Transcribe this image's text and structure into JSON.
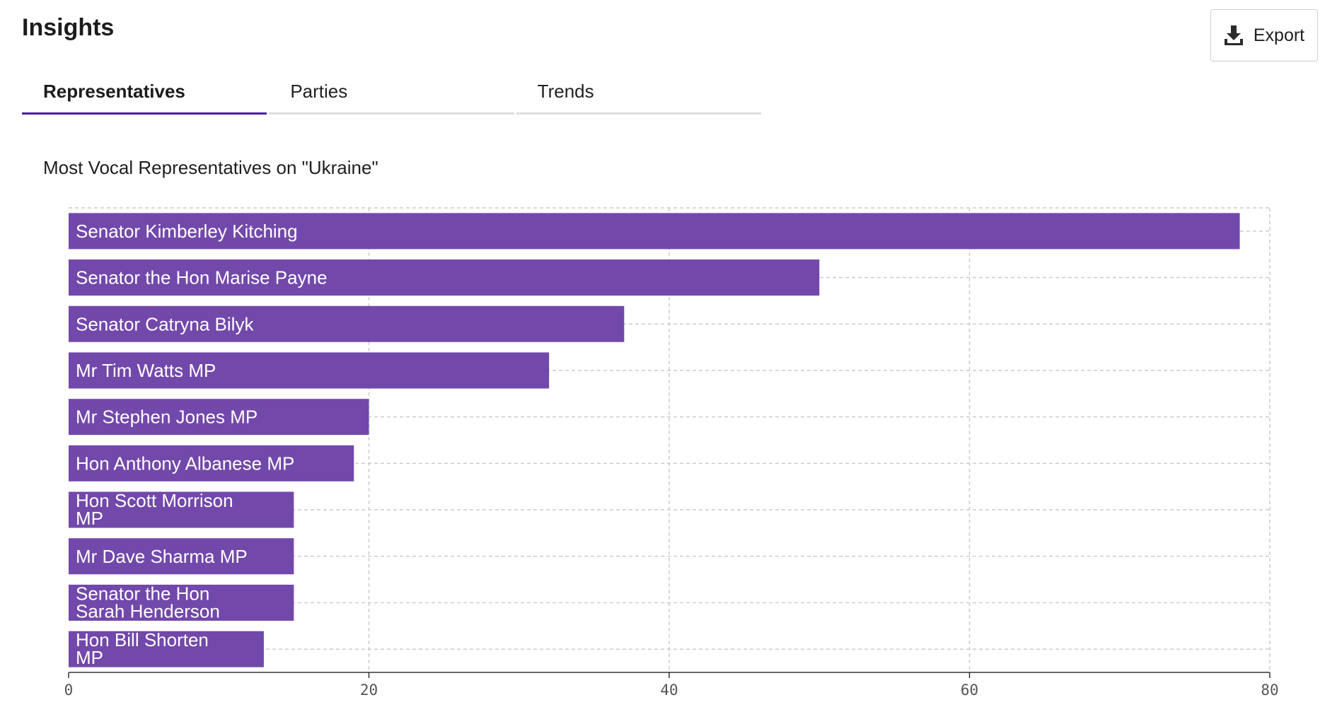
{
  "header": {
    "title": "Insights",
    "export_label": "Export"
  },
  "icons": {
    "export": "download-icon"
  },
  "tabs": [
    {
      "label": "Representatives",
      "active": true
    },
    {
      "label": "Parties",
      "active": false
    },
    {
      "label": "Trends",
      "active": false
    }
  ],
  "colors": {
    "bar": "#7248ab",
    "tab_active": "#4b1fa3",
    "grid": "#cccccc"
  },
  "chart_data": {
    "type": "bar",
    "orientation": "horizontal",
    "title": "Most Vocal Representatives on \"Ukraine\"",
    "xlabel": "",
    "ylabel": "",
    "categories": [
      "Senator Kimberley Kitching",
      "Senator the Hon Marise Payne",
      "Senator Catryna Bilyk",
      "Mr Tim Watts MP",
      "Mr Stephen Jones MP",
      "Hon Anthony Albanese MP",
      "Hon Scott Morrison MP",
      "Mr Dave Sharma MP",
      "Senator the Hon Sarah Henderson",
      "Hon Bill Shorten MP"
    ],
    "values": [
      78,
      50,
      37,
      32,
      20,
      19,
      15,
      15,
      15,
      13
    ],
    "xlim": [
      0,
      80
    ],
    "xticks": [
      0,
      20,
      40,
      60,
      80
    ],
    "grid": true
  }
}
